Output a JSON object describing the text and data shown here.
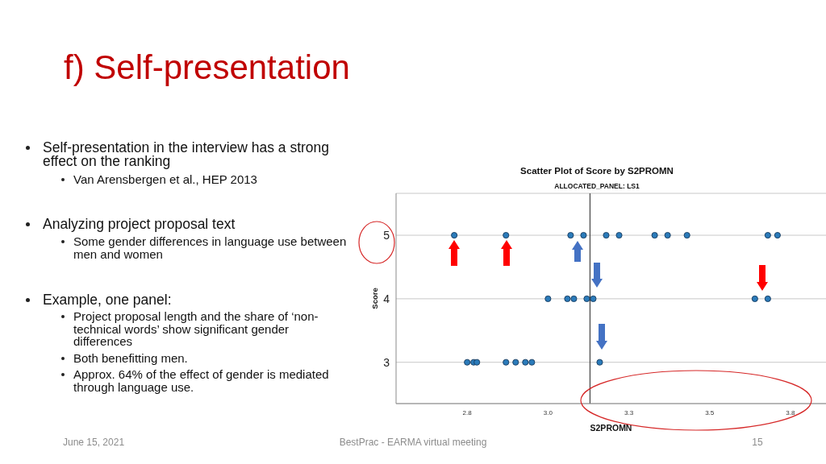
{
  "chart_data": {
    "type": "scatter",
    "title": "Scatter Plot of Score by S2PROMN",
    "subtitle": "ALLOCATED_PANEL: LS1",
    "xlabel": "S2PROMN",
    "ylabel": "Score",
    "x": [
      2.71,
      2.87,
      3.07,
      3.11,
      3.18,
      3.22,
      3.33,
      3.37,
      3.43,
      3.68,
      3.71,
      3.0,
      3.06,
      3.08,
      3.12,
      3.14,
      3.64,
      3.68,
      2.75,
      2.77,
      2.78,
      2.87,
      2.9,
      2.93,
      2.95,
      3.16
    ],
    "values": [
      5,
      5,
      5,
      5,
      5,
      5,
      5,
      5,
      5,
      5,
      5,
      4,
      4,
      4,
      4,
      4,
      4,
      4,
      3,
      3,
      3,
      3,
      3,
      3,
      3,
      3
    ],
    "color": "#2b7bba",
    "marker": "circle",
    "xlim": [
      2.53,
      3.86
    ],
    "xticks": [
      {
        "value": 2.75,
        "label": "2.8"
      },
      {
        "value": 3.0,
        "label": "3.0"
      },
      {
        "value": 3.25,
        "label": "3.3"
      },
      {
        "value": 3.5,
        "label": "3.5"
      },
      {
        "value": 3.75,
        "label": "3.8"
      }
    ],
    "ylim": [
      2.35,
      5.66
    ],
    "yticks": [
      3,
      4,
      5
    ],
    "grid": "y",
    "ref_lines": [
      {
        "axis": "x",
        "value": 3.13,
        "color": "#4d4d4d"
      }
    ],
    "annotations": [
      "f) Self-presentation",
      "Self-presentation in the interview has a strong effect on the ranking",
      "Van Arensbergen et al., HEP 2013",
      "Analyzing project proposal text",
      "Some gender differences in language use between men and women",
      "Example, one panel:",
      "Project proposal length and the share of ‘non-technical words’ show significant gender differences",
      "Both benefitting men.",
      "Approx. 64% of the effect of gender is mediated through language use.",
      "June 15, 2021",
      "BestPrac - EARMA virtual meeting",
      "15"
    ]
  }
}
